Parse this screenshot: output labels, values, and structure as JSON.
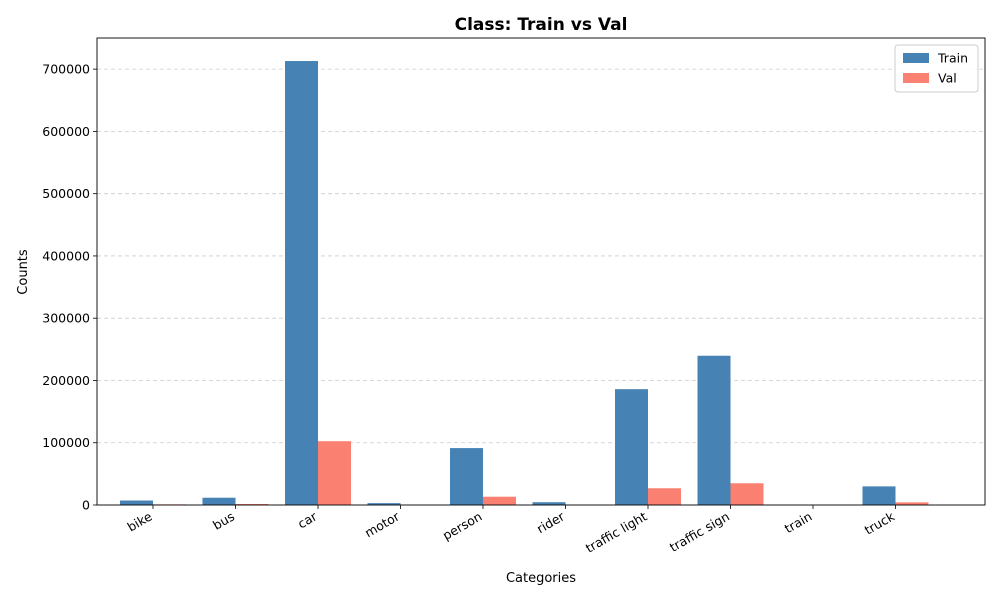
{
  "chart_data": {
    "type": "bar",
    "title": "Class: Train vs Val",
    "xlabel": "Categories",
    "ylabel": "Counts",
    "categories": [
      "bike",
      "bus",
      "car",
      "motor",
      "person",
      "rider",
      "traffic light",
      "traffic sign",
      "train",
      "truck"
    ],
    "series": [
      {
        "name": "Train",
        "color": "#4682b4",
        "values": [
          7200,
          11700,
          713000,
          3000,
          91400,
          4500,
          186000,
          239700,
          136,
          29900
        ]
      },
      {
        "name": "Val",
        "color": "#fa8072",
        "values": [
          1000,
          1600,
          102500,
          450,
          13300,
          650,
          26900,
          34900,
          15,
          4250
        ]
      }
    ],
    "ylim": [
      0,
      750000
    ],
    "yticks": [
      0,
      100000,
      200000,
      300000,
      400000,
      500000,
      600000,
      700000
    ],
    "ytick_labels": [
      "0",
      "100000",
      "200000",
      "300000",
      "400000",
      "500000",
      "600000",
      "700000"
    ],
    "grid": "y-dashed",
    "legend": "top-right"
  }
}
